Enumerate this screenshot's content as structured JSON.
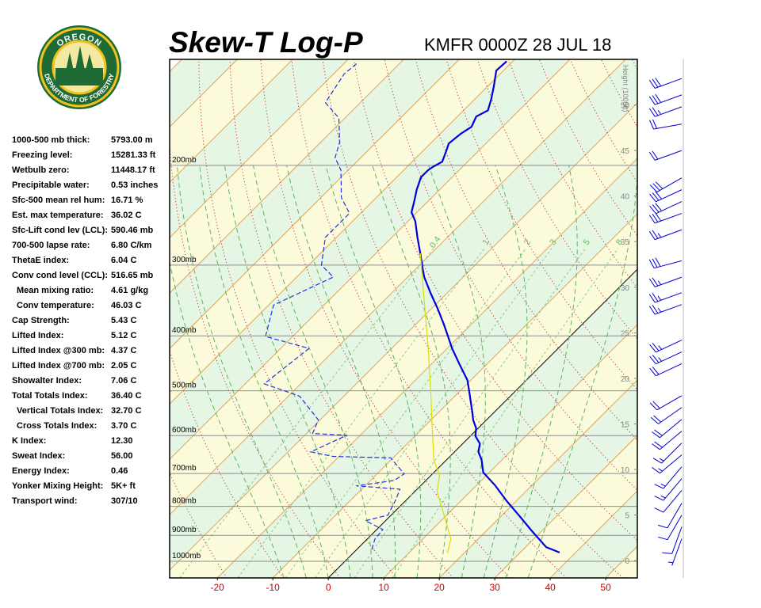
{
  "logo": {
    "top": "OREGON",
    "bottom": "DEPARTMENT OF FORESTRY"
  },
  "indices": {
    "rows": [
      [
        "1000-500 mb thick:",
        "5793.00 m"
      ],
      [
        "Freezing level:",
        "15281.33 ft"
      ],
      [
        "Wetbulb zero:",
        "11448.17 ft"
      ],
      [
        "Precipitable water:",
        "0.53 inches"
      ],
      [
        "Sfc-500 mean rel hum:",
        "16.71 %"
      ],
      [
        "Est. max temperature:",
        "36.02 C"
      ],
      [
        "Sfc-Lift cond lev (LCL):",
        "590.46 mb"
      ],
      [
        "700-500 lapse rate:",
        "6.80 C/km"
      ],
      [
        "ThetaE index:",
        "6.04 C"
      ],
      [
        "Conv cond level (CCL):",
        "516.65 mb"
      ],
      [
        "Mean mixing ratio:",
        "4.61 g/kg"
      ],
      [
        "Conv temperature:",
        "46.03 C"
      ],
      [
        "Cap Strength:",
        "5.43 C"
      ],
      [
        "Lifted Index:",
        "5.12 C"
      ],
      [
        "Lifted Index @300 mb:",
        "4.37 C"
      ],
      [
        "Lifted Index @700 mb:",
        "2.05 C"
      ],
      [
        "Showalter Index:",
        "7.06 C"
      ],
      [
        "Total Totals Index:",
        "36.40 C"
      ],
      [
        "Vertical Totals Index:",
        "32.70 C"
      ],
      [
        "Cross Totals Index:",
        "3.70 C"
      ],
      [
        "K Index:",
        "12.30"
      ],
      [
        "Sweat Index:",
        "56.00"
      ],
      [
        "Energy Index:",
        "0.46"
      ],
      [
        "Yonker Mixing Height:",
        "5K+ ft"
      ],
      [
        "Transport wind:",
        "307/10"
      ]
    ]
  },
  "chart_data": {
    "type": "skewt",
    "title": "Skew-T Log-P",
    "subtitle": "KMFR 0000Z 28 JUL 18",
    "xlim": [
      -28.6,
      55.7
    ],
    "xticks": [
      -20,
      -10,
      0,
      10,
      20,
      30,
      40,
      50
    ],
    "ylim": [
      1070,
      130
    ],
    "yticks": [
      {
        "value": 1000,
        "label": "1000mb"
      },
      {
        "value": 900,
        "label": "900mb"
      },
      {
        "value": 800,
        "label": "800mb"
      },
      {
        "value": 700,
        "label": "700mb"
      },
      {
        "value": 600,
        "label": "600mb"
      },
      {
        "value": 500,
        "label": "500mb"
      },
      {
        "value": 400,
        "label": "400mb"
      },
      {
        "value": 300,
        "label": "300mb"
      },
      {
        "value": 200,
        "label": "200mb"
      }
    ],
    "height_axis_label": "Height (1000ft)",
    "hlim": [
      -1.9,
      55
    ],
    "hticks": [
      0,
      5,
      10,
      15,
      20,
      25,
      30,
      35,
      40,
      45,
      50
    ],
    "mixing_ratios": [
      0.4,
      1,
      2,
      3,
      5,
      8
    ],
    "series": [
      {
        "color": "#0000dd",
        "pressure": [
          965,
          944,
          885,
          829,
          783,
          734,
          697,
          662,
          641,
          620,
          601,
          582,
          563,
          545,
          520,
          501,
          479,
          449,
          421,
          401,
          382,
          358,
          336,
          315,
          305,
          286,
          268,
          251,
          242,
          232,
          221,
          210,
          204,
          201,
          197,
          188,
          183,
          176,
          171,
          164,
          160,
          153,
          145,
          136,
          131
        ],
        "values": [
          37.1,
          33.7,
          28.3,
          23.0,
          18.3,
          13.3,
          8.9,
          6.3,
          4.3,
          3.1,
          0.9,
          -0.4,
          -2.4,
          -4.0,
          -6.4,
          -8.3,
          -10.6,
          -14.9,
          -19.1,
          -22.0,
          -24.9,
          -28.9,
          -33.0,
          -37.0,
          -38.7,
          -42.0,
          -45.4,
          -48.7,
          -51.0,
          -52.4,
          -54.1,
          -55.6,
          -55.6,
          -55.3,
          -54.6,
          -55.9,
          -56.7,
          -56.3,
          -55.6,
          -56.6,
          -55.6,
          -57.0,
          -58.9,
          -61.3,
          -61.1
        ]
      },
      {
        "color": "#2233dd",
        "dashed": true,
        "pressure": [
          953,
          914,
          879,
          848,
          829,
          777,
          746,
          736,
          720,
          701,
          657,
          653,
          641,
          599,
          595,
          563,
          511,
          486,
          421,
          401,
          353,
          315,
          300,
          268,
          243,
          228,
          204,
          194,
          182,
          165,
          155,
          138,
          132
        ],
        "values": [
          2.7,
          1.4,
          1.1,
          -3.6,
          -0.6,
          -2.0,
          -3.1,
          -11.6,
          -5.7,
          -5.1,
          -10.4,
          -21.1,
          -25.9,
          -22.4,
          -28.9,
          -30.3,
          -38.0,
          -46.6,
          -44.9,
          -54.9,
          -59.1,
          -53.4,
          -57.7,
          -62.0,
          -62.0,
          -66.3,
          -71.3,
          -74.6,
          -76.6,
          -81.1,
          -86.3,
          -88.1,
          -87.7
        ]
      },
      {
        "color": "#dddd00",
        "pressure": [
          968,
          914,
          803,
          753,
          706,
          662,
          582,
          511,
          421,
          347,
          286
        ],
        "values": [
          17.0,
          15.1,
          7.7,
          4.0,
          1.6,
          -2.3,
          -8.3,
          -14.3,
          -23.4,
          -32.7,
          -42.0
        ]
      }
    ],
    "winds": {
      "height": [
        52.9,
        51.1,
        49.8,
        47.9,
        45.0,
        42.0,
        40.7,
        39.4,
        38.1,
        36.3,
        32.9,
        31.1,
        29.4,
        28.1,
        24.2,
        22.9,
        21.6,
        18.1,
        16.8,
        15.5,
        14.2,
        12.9,
        11.6,
        10.3,
        9.0,
        7.7,
        6.3,
        5.0,
        3.7,
        2.4
      ],
      "direction": [
        250,
        250,
        250,
        260,
        250,
        240,
        245,
        245,
        250,
        250,
        255,
        250,
        250,
        250,
        245,
        245,
        245,
        240,
        235,
        230,
        230,
        225,
        230,
        220,
        220,
        220,
        210,
        210,
        200,
        200
      ],
      "speed": [
        30,
        30,
        25,
        20,
        20,
        30,
        30,
        30,
        30,
        25,
        30,
        25,
        25,
        25,
        25,
        25,
        20,
        20,
        20,
        20,
        20,
        15,
        15,
        15,
        15,
        10,
        10,
        10,
        10,
        5
      ],
      "color": "#0000cc"
    }
  }
}
